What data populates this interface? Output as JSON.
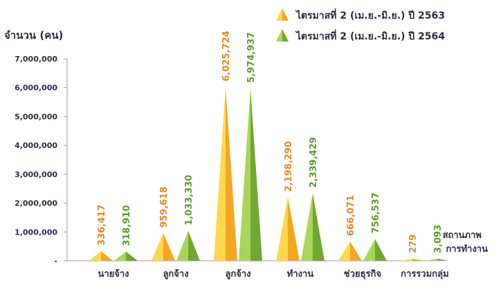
{
  "chart_data": {
    "type": "bar",
    "mark_shape": "pyramid",
    "ylabel": "จำนวน (คน)",
    "xlabel": "สถานภาพ การทำงาน",
    "xlabel_lines": [
      "สถานภาพ",
      "การทำงาน"
    ],
    "ylim": [
      0,
      7000000
    ],
    "yticks": [
      {
        "value": 0,
        "label": "-"
      },
      {
        "value": 1000000,
        "label": "1,000,000"
      },
      {
        "value": 2000000,
        "label": "2,000,000"
      },
      {
        "value": 3000000,
        "label": "3,000,000"
      },
      {
        "value": 4000000,
        "label": "4,000,000"
      },
      {
        "value": 5000000,
        "label": "5,000,000"
      },
      {
        "value": 6000000,
        "label": "6,000,000"
      },
      {
        "value": 7000000,
        "label": "7,000,000"
      }
    ],
    "grid": false,
    "legend_position": "top-right",
    "categories": [
      "นายจ้าง",
      "ลูกจ้าง",
      "ลูกจ้าง",
      "ทำงาน",
      "ช่วยธุรกิจ",
      "การรวมกลุ่ม"
    ],
    "series": [
      {
        "name": "ไตรมาสที่ 2 (เม.ย.-มิ.ย.) ปี 2563",
        "color": "#f5a623",
        "color_light": "#ffd84d",
        "label_color": "#e8872a",
        "values": [
          336417,
          959618,
          6025724,
          2198290,
          666071,
          279
        ],
        "labels": [
          "336,417",
          "959,618",
          "6,025,724",
          "2,198,290",
          "666,071",
          "279"
        ]
      },
      {
        "name": "ไตรมาสที่ 2 (เม.ย.-มิ.ย.) ปี 2564",
        "color": "#6fa832",
        "color_light": "#a9d65a",
        "label_color": "#5d9a2c",
        "values": [
          318910,
          1033330,
          5974937,
          2339429,
          756537,
          3093
        ],
        "labels": [
          "318,910",
          "1,033,330",
          "5,974,937",
          "2,339,429",
          "756,537",
          "3,093"
        ]
      }
    ]
  }
}
